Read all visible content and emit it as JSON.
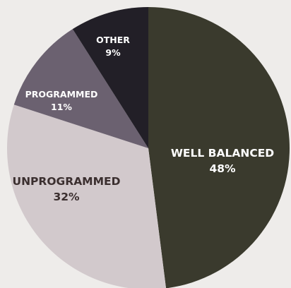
{
  "chart_data": {
    "type": "pie",
    "start_angle_deg": 0,
    "direction": "clockwise",
    "slices": [
      {
        "label": "WELL BALANCED",
        "value_label": "48%",
        "value": 48,
        "color": "#3a3a2d",
        "text_color": "#ffffff"
      },
      {
        "label": "UNPROGRAMMED",
        "value_label": "32%",
        "value": 32,
        "color": "#d2c9cc",
        "text_color": "#3b2f2f"
      },
      {
        "label": "PROGRAMMED",
        "value_label": "11%",
        "value": 11,
        "color": "#6b6170",
        "text_color": "#ffffff"
      },
      {
        "label": "OTHER",
        "value_label": "9%",
        "value": 9,
        "color": "#221f27",
        "text_color": "#ffffff"
      }
    ]
  }
}
